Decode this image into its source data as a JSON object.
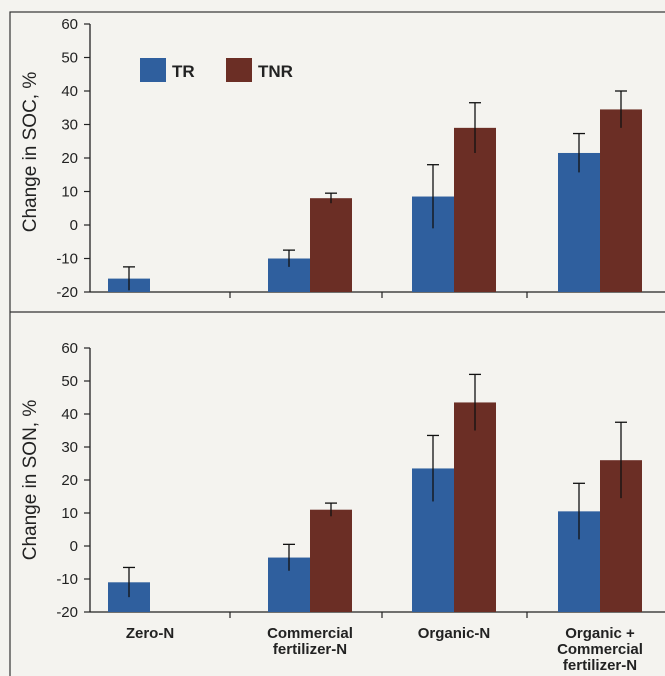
{
  "colors": {
    "TR": "#2f5f9e",
    "TNR": "#6b2e25",
    "axis": "#222222",
    "frame": "#333333"
  },
  "categories": [
    "Zero-N",
    [
      "Commercial",
      "fertilizer-N"
    ],
    "Organic-N",
    [
      "Organic +",
      "Commercial",
      "fertilizer-N"
    ]
  ],
  "chart_data": [
    {
      "type": "bar",
      "ylabel": "Change in SOC, %",
      "ylim": [
        -20,
        60
      ],
      "yticks": [
        60,
        50,
        40,
        30,
        20,
        10,
        0,
        -10,
        -20
      ],
      "legend": [
        "TR",
        "TNR"
      ],
      "legend_position": "top-left",
      "series": [
        {
          "name": "TR",
          "values": [
            -16,
            -10,
            8.5,
            21.5
          ],
          "errors": [
            3.5,
            2.5,
            9.5,
            5.8
          ]
        },
        {
          "name": "TNR",
          "values": [
            null,
            8,
            29,
            34.5
          ],
          "errors": [
            null,
            1.5,
            7.5,
            5.5
          ]
        }
      ]
    },
    {
      "type": "bar",
      "ylabel": "Change in SON, %",
      "ylim": [
        -20,
        60
      ],
      "yticks": [
        60,
        50,
        40,
        30,
        20,
        10,
        0,
        -10,
        -20
      ],
      "series": [
        {
          "name": "TR",
          "values": [
            -11,
            -3.5,
            23.5,
            10.5
          ],
          "errors": [
            4.5,
            4,
            10,
            8.5
          ]
        },
        {
          "name": "TNR",
          "values": [
            null,
            11,
            43.5,
            26
          ],
          "errors": [
            null,
            2,
            8.5,
            11.5
          ]
        }
      ]
    }
  ]
}
